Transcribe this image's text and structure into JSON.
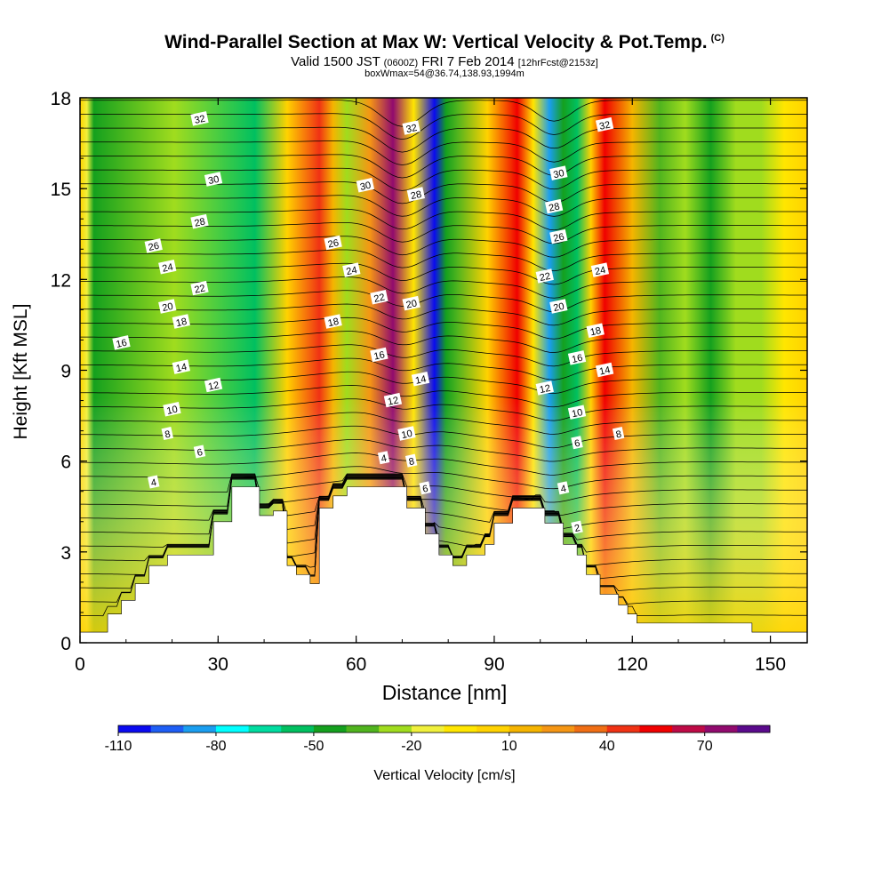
{
  "chart_data": {
    "type": "heatmap",
    "title": "Wind-Parallel Section at Max W: Vertical Velocity & Pot.Temp.",
    "title_tag": "(C)",
    "subtitle_main": "Valid 1500 JST",
    "subtitle_zone": "(0600Z)",
    "subtitle_date": "FRI 7 Feb 2014",
    "subtitle_fcst": "[12hrFcst@2153z]",
    "subtitle2": "boxWmax=54@36.74,138.93,1994m",
    "xlabel": "Distance [nm]",
    "ylabel": "Height [Kft MSL]",
    "colorbar_label": "Vertical Velocity [cm/s]",
    "xlim": [
      0,
      158
    ],
    "ylim": [
      0,
      18
    ],
    "x_ticks": [
      0,
      30,
      60,
      90,
      120,
      150
    ],
    "y_ticks": [
      0,
      3,
      6,
      9,
      12,
      15,
      18
    ],
    "colorbar_ticks": [
      -110,
      -80,
      -50,
      -20,
      10,
      40,
      70
    ],
    "colorbar_levels": [
      -110,
      -100,
      -90,
      -80,
      -70,
      -60,
      -50,
      -40,
      -30,
      -20,
      -10,
      0,
      10,
      20,
      30,
      40,
      50,
      60,
      70,
      80
    ],
    "colorbar_colors": [
      "#0a0af0",
      "#1e5ef5",
      "#1a9ef0",
      "#00ffff",
      "#00dca0",
      "#00c060",
      "#14a01e",
      "#50b41e",
      "#a0dc1e",
      "#f0f03c",
      "#ffe600",
      "#ffd200",
      "#f5b400",
      "#f59614",
      "#f06e14",
      "#f03214",
      "#f00000",
      "#be0a46",
      "#910a6e",
      "#5a0a8c"
    ],
    "velocity_bands": [
      {
        "x": 3,
        "w": -45
      },
      {
        "x": 38,
        "w": -55
      },
      {
        "x": 52,
        "w": 48
      },
      {
        "x": 58,
        "w": -30
      },
      {
        "x": 68,
        "w": 75
      },
      {
        "x": 77,
        "w": -110
      },
      {
        "x": 82,
        "w": -40
      },
      {
        "x": 95,
        "w": 50
      },
      {
        "x": 102,
        "w": -90
      },
      {
        "x": 108,
        "w": -55
      },
      {
        "x": 114,
        "w": 52
      },
      {
        "x": 126,
        "w": -35
      },
      {
        "x": 137,
        "w": -50
      },
      {
        "x": 148,
        "w": -30
      }
    ],
    "terrain": [
      [
        0,
        0.35
      ],
      [
        6,
        0.35
      ],
      [
        6,
        0.95
      ],
      [
        9,
        0.95
      ],
      [
        9,
        1.4
      ],
      [
        12,
        1.4
      ],
      [
        12,
        1.95
      ],
      [
        15,
        1.95
      ],
      [
        15,
        2.55
      ],
      [
        19,
        2.55
      ],
      [
        19,
        2.9
      ],
      [
        29,
        2.9
      ],
      [
        29,
        4.0
      ],
      [
        33,
        4.0
      ],
      [
        33,
        5.15
      ],
      [
        39,
        5.15
      ],
      [
        39,
        4.2
      ],
      [
        42,
        4.2
      ],
      [
        42,
        4.35
      ],
      [
        45,
        4.35
      ],
      [
        45,
        2.55
      ],
      [
        47,
        2.55
      ],
      [
        47,
        2.25
      ],
      [
        50,
        2.25
      ],
      [
        50,
        1.95
      ],
      [
        52,
        1.95
      ],
      [
        52,
        4.45
      ],
      [
        55,
        4.45
      ],
      [
        55,
        4.85
      ],
      [
        58,
        4.85
      ],
      [
        58,
        5.15
      ],
      [
        71,
        5.15
      ],
      [
        71,
        4.45
      ],
      [
        75,
        4.45
      ],
      [
        75,
        3.6
      ],
      [
        78,
        3.6
      ],
      [
        78,
        2.9
      ],
      [
        81,
        2.9
      ],
      [
        81,
        2.55
      ],
      [
        84,
        2.55
      ],
      [
        84,
        2.9
      ],
      [
        88,
        2.9
      ],
      [
        88,
        3.25
      ],
      [
        90,
        3.25
      ],
      [
        90,
        3.95
      ],
      [
        94,
        3.95
      ],
      [
        94,
        4.45
      ],
      [
        101,
        4.45
      ],
      [
        101,
        3.95
      ],
      [
        105,
        3.95
      ],
      [
        105,
        3.25
      ],
      [
        108,
        3.25
      ],
      [
        108,
        2.9
      ],
      [
        110,
        2.9
      ],
      [
        110,
        2.25
      ],
      [
        113,
        2.25
      ],
      [
        113,
        1.6
      ],
      [
        117,
        1.6
      ],
      [
        117,
        1.25
      ],
      [
        119,
        1.25
      ],
      [
        119,
        0.95
      ],
      [
        121,
        0.95
      ],
      [
        121,
        0.65
      ],
      [
        146,
        0.65
      ],
      [
        146,
        0.35
      ],
      [
        158,
        0.35
      ]
    ],
    "theta_levels": [
      2,
      4,
      6,
      8,
      10,
      12,
      14,
      16,
      18,
      20,
      22,
      24,
      26,
      28,
      30,
      32
    ],
    "contour_labels": [
      {
        "text": "32",
        "x": 26,
        "y": 17.3
      },
      {
        "text": "30",
        "x": 29,
        "y": 15.3
      },
      {
        "text": "28",
        "x": 26,
        "y": 13.9
      },
      {
        "text": "26",
        "x": 16,
        "y": 13.1
      },
      {
        "text": "24",
        "x": 19,
        "y": 12.4
      },
      {
        "text": "22",
        "x": 26,
        "y": 11.7
      },
      {
        "text": "20",
        "x": 19,
        "y": 11.1
      },
      {
        "text": "18",
        "x": 22,
        "y": 10.6
      },
      {
        "text": "16",
        "x": 9,
        "y": 9.9
      },
      {
        "text": "14",
        "x": 22,
        "y": 9.1
      },
      {
        "text": "12",
        "x": 29,
        "y": 8.5
      },
      {
        "text": "10",
        "x": 20,
        "y": 7.7
      },
      {
        "text": "8",
        "x": 19,
        "y": 6.9
      },
      {
        "text": "6",
        "x": 26,
        "y": 6.3
      },
      {
        "text": "4",
        "x": 16,
        "y": 5.3
      },
      {
        "text": "30",
        "x": 62,
        "y": 15.1
      },
      {
        "text": "26",
        "x": 55,
        "y": 13.2
      },
      {
        "text": "24",
        "x": 59,
        "y": 12.3
      },
      {
        "text": "22",
        "x": 65,
        "y": 11.4
      },
      {
        "text": "18",
        "x": 55,
        "y": 10.6
      },
      {
        "text": "16",
        "x": 65,
        "y": 9.5
      },
      {
        "text": "12",
        "x": 68,
        "y": 8.0
      },
      {
        "text": "10",
        "x": 71,
        "y": 6.9
      },
      {
        "text": "4",
        "x": 66,
        "y": 6.1
      },
      {
        "text": "8",
        "x": 72,
        "y": 6.0
      },
      {
        "text": "6",
        "x": 75,
        "y": 5.1
      },
      {
        "text": "32",
        "x": 72,
        "y": 17.0
      },
      {
        "text": "28",
        "x": 73,
        "y": 14.8
      },
      {
        "text": "20",
        "x": 72,
        "y": 11.2
      },
      {
        "text": "14",
        "x": 74,
        "y": 8.7
      },
      {
        "text": "30",
        "x": 104,
        "y": 15.5
      },
      {
        "text": "28",
        "x": 103,
        "y": 14.4
      },
      {
        "text": "26",
        "x": 104,
        "y": 13.4
      },
      {
        "text": "22",
        "x": 101,
        "y": 12.1
      },
      {
        "text": "20",
        "x": 104,
        "y": 11.1
      },
      {
        "text": "16",
        "x": 108,
        "y": 9.4
      },
      {
        "text": "12",
        "x": 101,
        "y": 8.4
      },
      {
        "text": "10",
        "x": 108,
        "y": 7.6
      },
      {
        "text": "6",
        "x": 108,
        "y": 6.6
      },
      {
        "text": "4",
        "x": 105,
        "y": 5.1
      },
      {
        "text": "2",
        "x": 108,
        "y": 3.8
      },
      {
        "text": "32",
        "x": 114,
        "y": 17.1
      },
      {
        "text": "24",
        "x": 113,
        "y": 12.3
      },
      {
        "text": "18",
        "x": 112,
        "y": 10.3
      },
      {
        "text": "14",
        "x": 114,
        "y": 9.0
      },
      {
        "text": "8",
        "x": 117,
        "y": 6.9
      }
    ]
  }
}
